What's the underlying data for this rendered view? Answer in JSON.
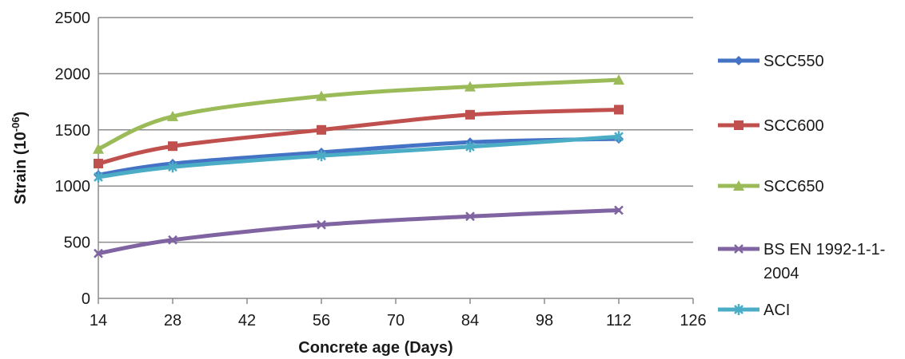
{
  "chart_data": {
    "type": "line",
    "title": "",
    "xlabel": "Concrete age (Days)",
    "ylabel": "Strain (10⁻⁰⁶)",
    "xlim": [
      14,
      126
    ],
    "ylim": [
      0,
      2500
    ],
    "x_ticks": [
      "14",
      "28",
      "42",
      "56",
      "70",
      "84",
      "98",
      "112",
      "126"
    ],
    "y_ticks": [
      "0",
      "500",
      "1000",
      "1500",
      "2000",
      "2500"
    ],
    "grid": "horizontal",
    "legend_position": "right",
    "x": [
      14,
      28,
      56,
      84,
      112
    ],
    "series": [
      {
        "name": "SCC550",
        "color": "#4472c4",
        "marker": "diamond",
        "values": [
          1100,
          1200,
          1300,
          1390,
          1420
        ]
      },
      {
        "name": "SCC600",
        "color": "#c0504d",
        "marker": "square",
        "values": [
          1200,
          1355,
          1500,
          1635,
          1680
        ]
      },
      {
        "name": "SCC650",
        "color": "#9bbb59",
        "marker": "triangle",
        "values": [
          1330,
          1620,
          1800,
          1885,
          1945
        ]
      },
      {
        "name": "BS EN 1992-1-1-2004",
        "legend_lines": [
          "BS EN 1992-1-1-",
          "2004"
        ],
        "color": "#8064a2",
        "marker": "x",
        "values": [
          400,
          520,
          655,
          730,
          785
        ]
      },
      {
        "name": "ACI",
        "color": "#4bacc6",
        "marker": "asterisk",
        "values": [
          1080,
          1170,
          1270,
          1350,
          1440
        ]
      }
    ]
  }
}
